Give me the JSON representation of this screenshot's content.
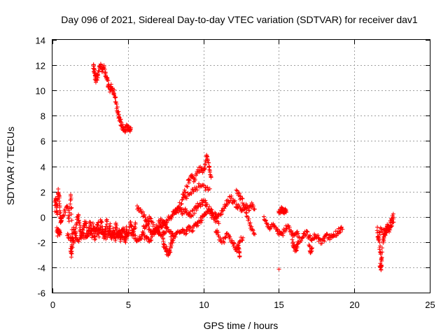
{
  "chart_data": {
    "type": "scatter",
    "title": "Day 096 of 2021, Sidereal Day-to-day VTEC variation (SDTVAR) for receiver dav1",
    "xlabel": "GPS time / hours",
    "ylabel": "SDTVAR / TECUs",
    "xlim": [
      0,
      25
    ],
    "ylim": [
      -6,
      14
    ],
    "xticks": [
      0,
      5,
      10,
      15,
      20,
      25
    ],
    "yticks": [
      -6,
      -4,
      -2,
      0,
      2,
      4,
      6,
      8,
      10,
      12,
      14
    ],
    "grid": true,
    "marker": "+",
    "series": [
      {
        "name": "SDTVAR",
        "color": "#ff0000",
        "tracks": [
          {
            "x": [
              0.15,
              0.2,
              0.25,
              0.3,
              0.35,
              0.4,
              0.45,
              0.5,
              0.55,
              0.6
            ],
            "y": [
              0.5,
              1.5,
              1.0,
              0.2,
              1.8,
              2.1,
              1.4,
              0.3,
              -0.5,
              -0.2
            ]
          },
          {
            "x": [
              0.3,
              0.35,
              0.4,
              0.45,
              0.5
            ],
            "y": [
              -1.0,
              -1.3,
              -1.1,
              -1.3,
              -1.2
            ]
          },
          {
            "x": [
              0.6,
              0.8,
              1.0,
              1.1,
              1.2,
              1.25,
              1.3,
              1.4,
              1.5,
              1.6,
              1.7,
              1.8,
              1.9,
              2.0,
              2.1,
              2.2,
              2.3,
              2.4,
              2.5,
              2.6,
              2.7,
              2.8,
              2.9,
              3.0,
              3.1,
              3.2,
              3.3,
              3.4,
              3.5,
              3.6,
              3.7,
              3.8,
              3.9,
              4.0,
              4.1,
              4.2,
              4.3,
              4.4,
              4.5,
              4.6,
              4.7,
              4.8,
              4.9,
              5.0,
              5.1,
              5.2,
              5.3,
              5.4,
              5.5
            ],
            "y": [
              -0.2,
              0.3,
              0.8,
              -0.3,
              1.8,
              0.5,
              -2.5,
              -1.0,
              -1.5,
              -0.5,
              0.2,
              -0.8,
              -1.5,
              -1.2,
              -0.6,
              -0.3,
              -1.6,
              -1.0,
              -0.4,
              -1.2,
              -0.6,
              -1.8,
              -1.0,
              -0.5,
              -1.4,
              -0.2,
              -0.8,
              -1.5,
              -1.0,
              -0.4,
              -1.3,
              -0.7,
              -1.8,
              -1.0,
              -1.4,
              -0.6,
              -1.5,
              -1.1,
              -1.9,
              -1.2,
              -0.9,
              -1.6,
              -1.0,
              -1.4,
              -0.8,
              -0.4,
              -1.2,
              -1.0,
              -0.6
            ]
          },
          {
            "x": [
              1.0,
              1.2,
              1.4,
              1.6,
              1.8,
              2.0,
              2.2,
              2.4,
              2.6,
              2.8,
              3.0,
              3.2,
              3.4,
              3.6,
              3.8,
              4.0,
              4.2,
              4.4,
              4.6,
              4.8,
              5.0
            ],
            "y": [
              -1.5,
              -1.7,
              -1.9,
              -1.6,
              -1.8,
              -1.4,
              -1.6,
              -1.2,
              -1.5,
              -1.1,
              -1.3,
              -1.0,
              -1.4,
              -1.6,
              -1.2,
              -1.5,
              -1.8,
              -1.3,
              -1.6,
              -1.9,
              -1.5
            ]
          },
          {
            "x": [
              1.2,
              1.25,
              1.3
            ],
            "y": [
              -2.6,
              -3.0,
              -2.2
            ]
          },
          {
            "x": [
              2.7,
              2.75,
              2.8,
              2.85,
              2.9,
              3.0,
              3.1,
              3.2,
              3.3,
              3.4,
              3.5,
              3.6,
              3.7,
              3.8,
              3.9,
              4.0,
              4.1,
              4.2,
              4.3,
              4.4,
              4.5,
              4.6,
              4.7,
              4.8,
              4.9,
              5.0,
              5.1,
              5.2
            ],
            "y": [
              12.0,
              11.7,
              11.3,
              11.0,
              10.8,
              11.2,
              11.8,
              12.0,
              11.6,
              11.9,
              11.3,
              11.0,
              10.5,
              10.1,
              10.3,
              10.0,
              9.8,
              9.0,
              8.4,
              8.0,
              7.6,
              7.2,
              7.0,
              6.9,
              7.1,
              7.0,
              6.9,
              7.0
            ]
          },
          {
            "x": [
              5.2,
              5.4,
              5.6,
              5.8,
              6.0,
              6.2,
              6.4,
              6.6,
              6.8,
              7.0,
              7.2,
              7.4,
              7.6,
              7.8,
              8.0,
              8.2,
              8.4,
              8.6,
              8.8,
              9.0,
              9.2,
              9.4,
              9.6,
              9.8,
              10.0,
              10.2,
              10.4,
              10.6,
              10.8,
              11.0,
              11.2,
              11.4,
              11.6,
              11.8,
              12.0,
              12.2,
              12.4,
              12.6,
              12.8,
              13.0,
              13.2,
              13.4
            ],
            "y": [
              -1.2,
              -1.5,
              -1.8,
              -1.6,
              -1.4,
              -1.7,
              -1.9,
              -1.5,
              -1.2,
              -1.0,
              -0.8,
              -0.6,
              -0.3,
              0.0,
              0.3,
              0.5,
              0.6,
              0.4,
              0.5,
              0.3,
              0.2,
              0.5,
              0.8,
              1.0,
              1.2,
              1.0,
              0.6,
              0.3,
              0.1,
              0.0,
              0.4,
              0.8,
              1.2,
              1.5,
              1.2,
              0.9,
              0.7,
              0.5,
              0.8,
              0.6,
              0.9,
              0.5
            ]
          },
          {
            "x": [
              5.6,
              5.8,
              6.0,
              6.2,
              6.4,
              6.6,
              6.8,
              7.0,
              7.2,
              7.4,
              7.6,
              7.8,
              8.0,
              8.2,
              8.4,
              8.6,
              8.8,
              9.0,
              9.2,
              9.4,
              9.6,
              9.8,
              10.0,
              10.2,
              10.4,
              10.6,
              10.8,
              11.0
            ],
            "y": [
              0.8,
              0.5,
              0.2,
              -0.4,
              -0.9,
              -1.2,
              -1.0,
              -0.6,
              -0.3,
              -0.5,
              -0.9,
              -1.3,
              -1.6,
              -1.4,
              -1.1,
              -1.0,
              -1.2,
              -0.9,
              -1.0,
              -0.8,
              -0.6,
              -0.3,
              0.0,
              0.2,
              0.4,
              0.1,
              -0.2,
              -0.4
            ]
          },
          {
            "x": [
              6.0,
              6.2,
              6.4,
              6.6,
              6.8,
              7.0,
              7.2,
              7.4,
              7.6
            ],
            "y": [
              -1.0,
              -0.6,
              -0.2,
              -0.5,
              -1.0,
              -1.3,
              -1.5,
              -1.2,
              -0.8
            ]
          },
          {
            "x": [
              7.3,
              7.4,
              7.5,
              7.6,
              7.7,
              7.8,
              7.9,
              8.0
            ],
            "y": [
              -1.8,
              -2.2,
              -2.5,
              -2.8,
              -3.0,
              -2.6,
              -2.0,
              -1.5
            ]
          },
          {
            "x": [
              8.6,
              8.8,
              9.0,
              9.2,
              9.4,
              9.6,
              9.8,
              10.0,
              10.1,
              10.2,
              10.3,
              10.4,
              10.5
            ],
            "y": [
              1.5,
              2.0,
              2.8,
              3.2,
              2.8,
              3.5,
              3.8,
              3.5,
              4.2,
              4.8,
              4.4,
              3.8,
              3.2
            ]
          },
          {
            "x": [
              8.0,
              8.3,
              8.6,
              8.9,
              9.2,
              9.5,
              9.8,
              10.1,
              10.4
            ],
            "y": [
              0.2,
              0.8,
              1.3,
              1.6,
              2.0,
              2.2,
              2.5,
              2.3,
              2.0
            ]
          },
          {
            "x": [
              10.8,
              11.0,
              11.2,
              11.4,
              11.6,
              11.8,
              12.0,
              12.2,
              12.4,
              12.6
            ],
            "y": [
              -1.0,
              -1.5,
              -2.0,
              -1.8,
              -1.4,
              -1.8,
              -2.2,
              -2.6,
              -2.0,
              -1.6
            ]
          },
          {
            "x": [
              12.2,
              12.4,
              12.6,
              12.8,
              13.0,
              13.2,
              13.4
            ],
            "y": [
              2.0,
              1.6,
              1.2,
              0.4,
              -0.3,
              -1.0,
              -1.6
            ]
          },
          {
            "x": [
              12.3,
              12.35,
              12.4
            ],
            "y": [
              -2.4,
              -2.7,
              -3.0
            ]
          },
          {
            "x": [
              14.0,
              14.2,
              14.4,
              14.6,
              14.8,
              15.0,
              15.2,
              15.4,
              15.6,
              15.8,
              16.0,
              16.2,
              16.4,
              16.6,
              16.8,
              17.0,
              17.2,
              17.4,
              17.6,
              17.8,
              18.0,
              18.2,
              18.4,
              18.6,
              18.8,
              19.0,
              19.2
            ],
            "y": [
              -0.2,
              -0.6,
              -1.0,
              -0.5,
              -0.8,
              -1.2,
              -1.4,
              -1.0,
              -0.8,
              -1.3,
              -1.6,
              -1.2,
              -1.8,
              -1.5,
              -1.2,
              -1.6,
              -1.9,
              -1.4,
              -1.7,
              -2.0,
              -1.8,
              -1.5,
              -1.7,
              -1.3,
              -1.4,
              -1.1,
              -1.0
            ]
          },
          {
            "x": [
              15.0,
              15.1,
              15.2,
              15.3,
              15.4,
              15.5
            ],
            "y": [
              0.5,
              0.4,
              0.6,
              0.3,
              0.5,
              0.4
            ]
          },
          {
            "x": [
              15.9,
              16.0,
              16.1,
              16.2,
              16.3
            ],
            "y": [
              -2.0,
              -2.3,
              -2.6,
              -2.4,
              -2.1
            ]
          },
          {
            "x": [
              17.0,
              17.1,
              17.2
            ],
            "y": [
              -2.4,
              -2.8,
              -2.5
            ]
          },
          {
            "x": [
              15.0
            ],
            "y": [
              -4.0
            ]
          },
          {
            "x": [
              21.5,
              21.6,
              21.7,
              21.8,
              21.9,
              22.0,
              22.1,
              22.2,
              22.3,
              22.4,
              22.5,
              22.6
            ],
            "y": [
              -1.0,
              -1.8,
              -2.5,
              -3.5,
              -2.0,
              -1.5,
              -1.2,
              -0.8,
              -1.0,
              -0.5,
              -0.2,
              0.1
            ]
          },
          {
            "x": [
              21.7,
              21.75,
              21.8
            ],
            "y": [
              -3.8,
              -4.1,
              -3.6
            ]
          },
          {
            "x": [
              21.6,
              21.8,
              22.0,
              22.2,
              22.4,
              22.6
            ],
            "y": [
              -1.5,
              -1.0,
              -1.3,
              -0.7,
              -0.9,
              -0.4
            ]
          }
        ]
      }
    ]
  }
}
